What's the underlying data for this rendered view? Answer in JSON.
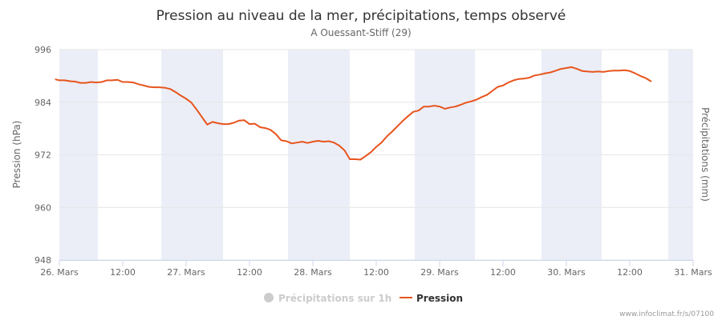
{
  "chart_data": {
    "type": "line",
    "title": "Pression au niveau de la mer, précipitations, temps observé",
    "subtitle": "A Ouessant-Stiff (29)",
    "ylabel": "Pression (hPa)",
    "y2label": "Précipitations (mm)",
    "ylim": [
      948,
      996
    ],
    "yticks": [
      948,
      960,
      972,
      984,
      996
    ],
    "xlim_hours": [
      0,
      120
    ],
    "xticks": [
      {
        "h": 0,
        "label": "26. Mars"
      },
      {
        "h": 12,
        "label": "12:00"
      },
      {
        "h": 24,
        "label": "27. Mars"
      },
      {
        "h": 36,
        "label": "12:00"
      },
      {
        "h": 48,
        "label": "28. Mars"
      },
      {
        "h": 60,
        "label": "12:00"
      },
      {
        "h": 72,
        "label": "29. Mars"
      },
      {
        "h": 84,
        "label": "12:00"
      },
      {
        "h": 96,
        "label": "30. Mars"
      },
      {
        "h": 108,
        "label": "12:00"
      },
      {
        "h": 120,
        "label": "31. Mars"
      }
    ],
    "night_bands_hours": [
      [
        -1,
        7.3
      ],
      [
        19.3,
        31
      ],
      [
        43.3,
        55
      ],
      [
        67.3,
        78.7
      ],
      [
        91.3,
        102.7
      ],
      [
        115.3,
        121
      ]
    ],
    "series": [
      {
        "name": "Pression",
        "color": "#e8541d",
        "x": [
          -0.7,
          0,
          1,
          2,
          3,
          4,
          5,
          6,
          7,
          8,
          9,
          10,
          11,
          12,
          13,
          14,
          15,
          16,
          17,
          18,
          19,
          20,
          21,
          22,
          23,
          24,
          25,
          26,
          27,
          28,
          29,
          30,
          31,
          32,
          33,
          34,
          35,
          36,
          37,
          38,
          39,
          40,
          41,
          42,
          43,
          44,
          45,
          46,
          47,
          48,
          49,
          50,
          51,
          52,
          53,
          54,
          55,
          56,
          57,
          58,
          59,
          60,
          61,
          62,
          63,
          64,
          65,
          66,
          67,
          68,
          69,
          70,
          71,
          72,
          73,
          74,
          75,
          76,
          77,
          78,
          79,
          80,
          81,
          82,
          83,
          84,
          85,
          86,
          87,
          88,
          89,
          90,
          91,
          92,
          93,
          94,
          95,
          96,
          97,
          98,
          99,
          100,
          101,
          102,
          103,
          104,
          105,
          106,
          107,
          108,
          109,
          110,
          111,
          112
        ],
        "values": [
          989.2,
          989.0,
          989.0,
          988.8,
          988.7,
          988.4,
          988.4,
          988.6,
          988.5,
          988.6,
          989.0,
          989.0,
          989.1,
          988.6,
          988.6,
          988.5,
          988.1,
          987.8,
          987.5,
          987.4,
          987.4,
          987.3,
          987.0,
          986.3,
          985.5,
          984.8,
          983.9,
          982.3,
          980.6,
          978.9,
          979.5,
          979.2,
          979.0,
          979.0,
          979.3,
          979.8,
          979.9,
          979.0,
          979.1,
          978.3,
          978.1,
          977.7,
          976.7,
          975.3,
          975.1,
          974.6,
          974.8,
          975.0,
          974.7,
          975.0,
          975.2,
          975.0,
          975.1,
          974.8,
          974.1,
          973.0,
          971.0,
          971.0,
          970.9,
          971.7,
          972.6,
          973.8,
          974.8,
          976.2,
          977.3,
          978.5,
          979.7,
          980.8,
          981.8,
          982.1,
          983.0,
          983.0,
          983.2,
          983.0,
          982.5,
          982.8,
          983.0,
          983.4,
          983.9,
          984.2,
          984.6,
          985.2,
          985.7,
          986.6,
          987.5,
          987.8,
          988.5,
          989.0,
          989.3,
          989.4,
          989.6,
          990.1,
          990.3,
          990.6,
          990.8,
          991.2,
          991.6,
          991.8,
          992.0,
          991.6,
          991.1,
          991.0,
          990.9,
          991.0,
          990.9,
          991.1,
          991.2,
          991.2,
          991.3,
          991.1,
          990.6,
          990.0,
          989.5,
          988.8
        ]
      },
      {
        "name": "Précipitations sur 1h",
        "color": "#cccccc",
        "x": [],
        "values": []
      }
    ],
    "legend_position": "bottom-center",
    "grid": true
  },
  "credit": "www.infoclimat.fr/s/07100",
  "colors": {
    "night_band": "#ebeef7",
    "grid": "#e6e6e6",
    "axis": "#ccd6eb",
    "legend_inactive": "#cccccc",
    "legend_active": "#333333"
  }
}
